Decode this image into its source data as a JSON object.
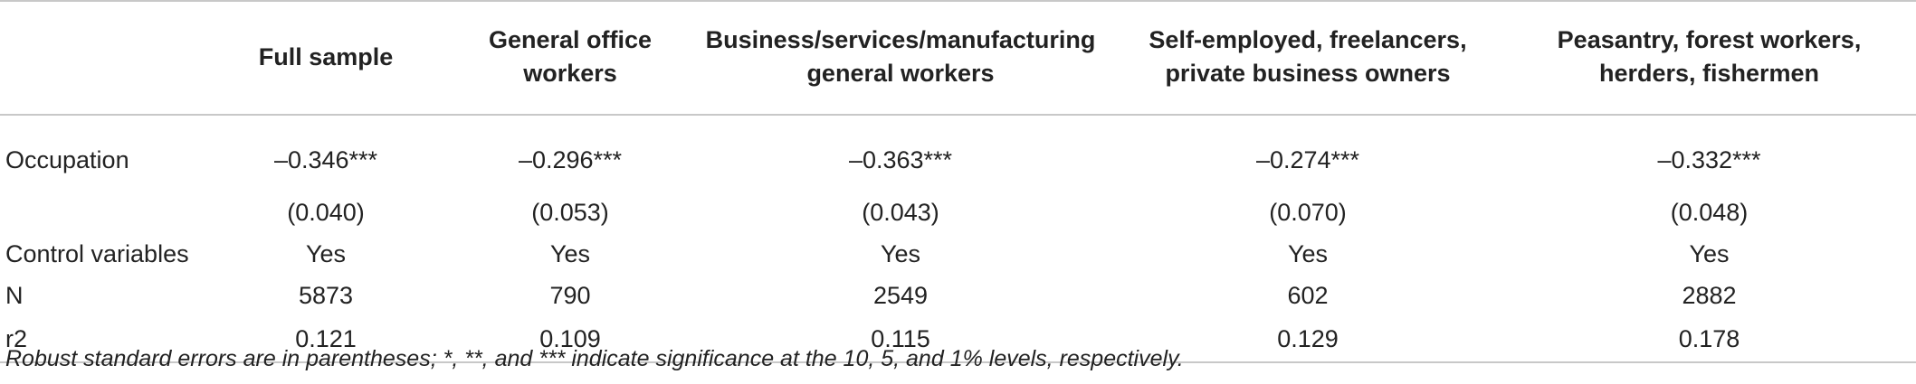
{
  "table": {
    "headers": [
      "",
      "Full sample",
      "General office\nworkers",
      "Business/services/manufacturing\ngeneral workers",
      "Self-employed, freelancers,\nprivate business owners",
      "Peasantry, forest workers,\nherders, fishermen"
    ],
    "rows": [
      {
        "label": "Occupation",
        "cells": [
          "–0.346***",
          "–0.296***",
          "–0.363***",
          "–0.274***",
          "–0.332***"
        ]
      },
      {
        "label": "",
        "cells": [
          "(0.040)",
          "(0.053)",
          "(0.043)",
          "(0.070)",
          "(0.048)"
        ]
      },
      {
        "label": "Control variables",
        "cells": [
          "Yes",
          "Yes",
          "Yes",
          "Yes",
          "Yes"
        ]
      },
      {
        "label": "N",
        "cells": [
          "5873",
          "790",
          "2549",
          "602",
          "2882"
        ]
      },
      {
        "label": "r2",
        "cells": [
          "0.121",
          "0.109",
          "0.115",
          "0.129",
          "0.178"
        ]
      }
    ]
  },
  "note": "Robust standard errors are in parentheses; *, **, and *** indicate significance at the 10, 5, and 1% levels, respectively."
}
